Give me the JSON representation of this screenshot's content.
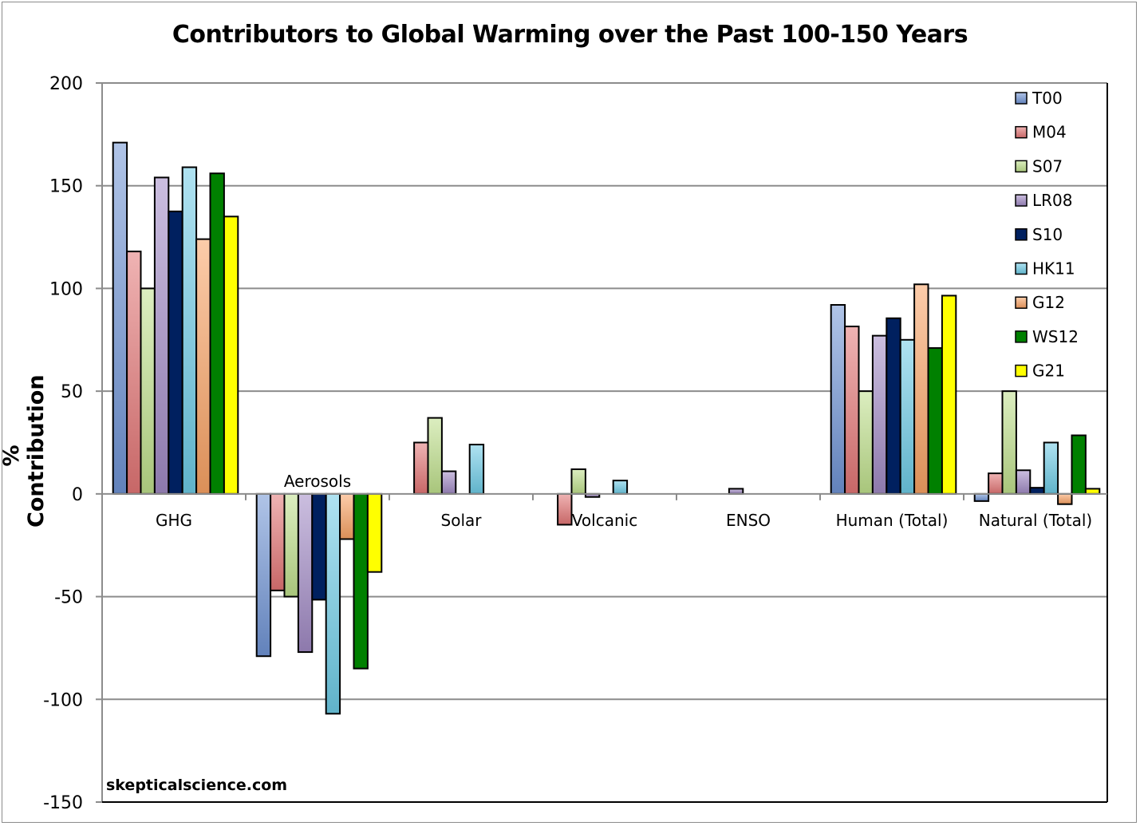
{
  "chart_data": {
    "type": "bar",
    "title": "Contributors to Global Warming over the Past 100-150 Years",
    "xlabel": "",
    "ylabel": "% Contribution",
    "ylim": [
      -150,
      200
    ],
    "yticks": [
      200,
      150,
      100,
      50,
      0,
      -50,
      -100,
      -150
    ],
    "grid": true,
    "legend_position": "top-right",
    "watermark": "skepticalscience.com",
    "categories": [
      "GHG",
      "Aerosols",
      "Solar",
      "Volcanic",
      "ENSO",
      "Human (Total)",
      "Natural (Total)"
    ],
    "series": [
      {
        "name": "T00",
        "color": "#6f94d4",
        "values": [
          171,
          -79,
          null,
          null,
          null,
          92,
          -3.5
        ]
      },
      {
        "name": "M04",
        "color": "#e27575",
        "values": [
          118,
          -47,
          25,
          -15,
          null,
          81.5,
          10
        ]
      },
      {
        "name": "S07",
        "color": "#bfe08c",
        "values": [
          100,
          -50,
          37,
          12,
          null,
          50,
          50
        ]
      },
      {
        "name": "LR08",
        "color": "#a089c4",
        "values": [
          154,
          -77,
          11,
          -1.5,
          2.5,
          77,
          11.5
        ]
      },
      {
        "name": "S10",
        "color": "#00205f",
        "values": [
          137.5,
          -51.5,
          null,
          null,
          null,
          85.5,
          3
        ]
      },
      {
        "name": "HK11",
        "color": "#6dcbe6",
        "values": [
          159,
          -107,
          24,
          6.5,
          null,
          75,
          25
        ]
      },
      {
        "name": "G12",
        "color": "#f9a364",
        "values": [
          124,
          -22,
          null,
          null,
          null,
          102,
          -5
        ]
      },
      {
        "name": "WS12",
        "color": "#008000",
        "values": [
          156,
          -85,
          null,
          null,
          null,
          71,
          28.5
        ]
      },
      {
        "name": "G21",
        "color": "#ffff00",
        "values": [
          135,
          -38,
          null,
          null,
          null,
          96.5,
          2.5
        ]
      }
    ]
  }
}
